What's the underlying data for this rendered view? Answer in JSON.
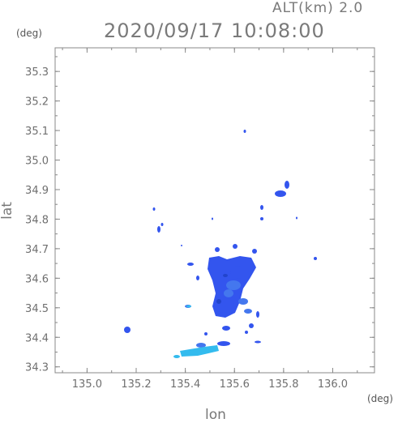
{
  "header": {
    "alt_label": "ALT(km)  2.0",
    "datetime": "2020/09/17 10:08:00"
  },
  "axes": {
    "y_unit": "(deg)",
    "x_unit": "(deg)",
    "y_label": "lat",
    "x_label": "lon",
    "y_ticks": [
      "35.3",
      "35.2",
      "35.1",
      "35.0",
      "34.9",
      "34.8",
      "34.7",
      "34.6",
      "34.5",
      "34.4",
      "34.3"
    ],
    "x_ticks": [
      "135.0",
      "135.2",
      "135.4",
      "135.6",
      "135.8",
      "136.0"
    ]
  },
  "map": {
    "lon_range": [
      134.87,
      136.17
    ],
    "lat_range": [
      34.28,
      35.38
    ],
    "echo_colors": [
      "#3355ee",
      "#4477ee",
      "#33bbee"
    ]
  }
}
